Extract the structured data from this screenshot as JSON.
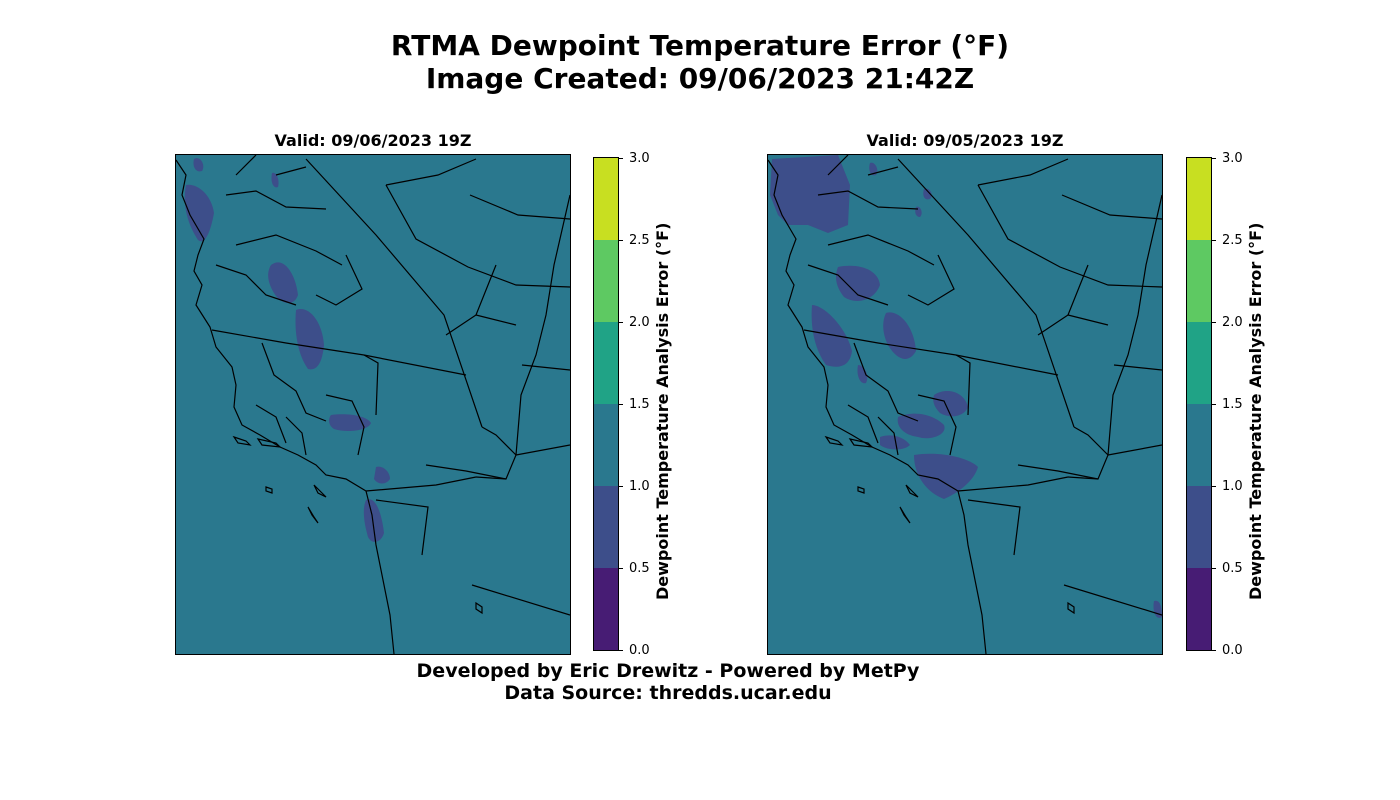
{
  "figure": {
    "title_line1": "RTMA Dewpoint Temperature Error (°F)",
    "title_line2": "Image Created: 09/06/2023 21:42Z",
    "footer_line1": "Developed by Eric Drewitz - Powered by MetPy",
    "footer_line2": "Data Source: thredds.ucar.edu"
  },
  "panels": [
    {
      "title": "Valid: 09/06/2023 19Z",
      "colorbar_label": "Dewpoint Temperature Analysis Error (°F)"
    },
    {
      "title": "Valid: 09/05/2023 19Z",
      "colorbar_label": "Dewpoint Temperature Analysis Error (°F)"
    }
  ],
  "colorbar": {
    "ticks": [
      "0.0",
      "0.5",
      "1.0",
      "1.5",
      "2.0",
      "2.5",
      "3.0"
    ],
    "levels": [
      {
        "from": 0.0,
        "to": 0.5,
        "color": "#471c74"
      },
      {
        "from": 0.5,
        "to": 1.0,
        "color": "#3d4e8a"
      },
      {
        "from": 1.0,
        "to": 1.5,
        "color": "#2a788e"
      },
      {
        "from": 1.5,
        "to": 2.0,
        "color": "#20a386"
      },
      {
        "from": 2.0,
        "to": 2.5,
        "color": "#5ec962"
      },
      {
        "from": 2.5,
        "to": 3.0,
        "color": "#c8df21"
      }
    ]
  }
}
